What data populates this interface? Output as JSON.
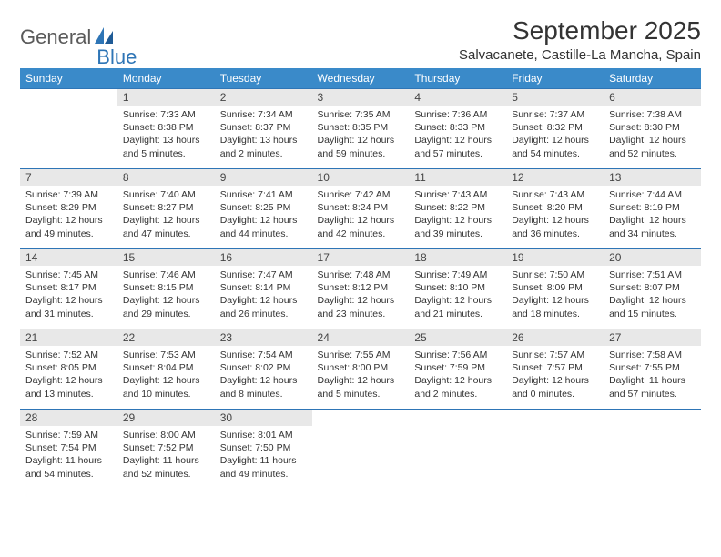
{
  "logo": {
    "part1": "General",
    "part2": "Blue"
  },
  "header": {
    "month_title": "September 2025",
    "location": "Salvacanete, Castille-La Mancha, Spain"
  },
  "colors": {
    "header_bg": "#3a8ac9",
    "border": "#2e75b6",
    "daynum_bg": "#e8e8e8",
    "text": "#333333",
    "logo_gray": "#5a5a5a",
    "logo_blue": "#2e75b6"
  },
  "weekdays": [
    "Sunday",
    "Monday",
    "Tuesday",
    "Wednesday",
    "Thursday",
    "Friday",
    "Saturday"
  ],
  "weeks": [
    [
      {
        "n": "",
        "sr": "",
        "ss": "",
        "dl": "",
        "empty": true
      },
      {
        "n": "1",
        "sr": "Sunrise: 7:33 AM",
        "ss": "Sunset: 8:38 PM",
        "dl": "Daylight: 13 hours and 5 minutes."
      },
      {
        "n": "2",
        "sr": "Sunrise: 7:34 AM",
        "ss": "Sunset: 8:37 PM",
        "dl": "Daylight: 13 hours and 2 minutes."
      },
      {
        "n": "3",
        "sr": "Sunrise: 7:35 AM",
        "ss": "Sunset: 8:35 PM",
        "dl": "Daylight: 12 hours and 59 minutes."
      },
      {
        "n": "4",
        "sr": "Sunrise: 7:36 AM",
        "ss": "Sunset: 8:33 PM",
        "dl": "Daylight: 12 hours and 57 minutes."
      },
      {
        "n": "5",
        "sr": "Sunrise: 7:37 AM",
        "ss": "Sunset: 8:32 PM",
        "dl": "Daylight: 12 hours and 54 minutes."
      },
      {
        "n": "6",
        "sr": "Sunrise: 7:38 AM",
        "ss": "Sunset: 8:30 PM",
        "dl": "Daylight: 12 hours and 52 minutes."
      }
    ],
    [
      {
        "n": "7",
        "sr": "Sunrise: 7:39 AM",
        "ss": "Sunset: 8:29 PM",
        "dl": "Daylight: 12 hours and 49 minutes."
      },
      {
        "n": "8",
        "sr": "Sunrise: 7:40 AM",
        "ss": "Sunset: 8:27 PM",
        "dl": "Daylight: 12 hours and 47 minutes."
      },
      {
        "n": "9",
        "sr": "Sunrise: 7:41 AM",
        "ss": "Sunset: 8:25 PM",
        "dl": "Daylight: 12 hours and 44 minutes."
      },
      {
        "n": "10",
        "sr": "Sunrise: 7:42 AM",
        "ss": "Sunset: 8:24 PM",
        "dl": "Daylight: 12 hours and 42 minutes."
      },
      {
        "n": "11",
        "sr": "Sunrise: 7:43 AM",
        "ss": "Sunset: 8:22 PM",
        "dl": "Daylight: 12 hours and 39 minutes."
      },
      {
        "n": "12",
        "sr": "Sunrise: 7:43 AM",
        "ss": "Sunset: 8:20 PM",
        "dl": "Daylight: 12 hours and 36 minutes."
      },
      {
        "n": "13",
        "sr": "Sunrise: 7:44 AM",
        "ss": "Sunset: 8:19 PM",
        "dl": "Daylight: 12 hours and 34 minutes."
      }
    ],
    [
      {
        "n": "14",
        "sr": "Sunrise: 7:45 AM",
        "ss": "Sunset: 8:17 PM",
        "dl": "Daylight: 12 hours and 31 minutes."
      },
      {
        "n": "15",
        "sr": "Sunrise: 7:46 AM",
        "ss": "Sunset: 8:15 PM",
        "dl": "Daylight: 12 hours and 29 minutes."
      },
      {
        "n": "16",
        "sr": "Sunrise: 7:47 AM",
        "ss": "Sunset: 8:14 PM",
        "dl": "Daylight: 12 hours and 26 minutes."
      },
      {
        "n": "17",
        "sr": "Sunrise: 7:48 AM",
        "ss": "Sunset: 8:12 PM",
        "dl": "Daylight: 12 hours and 23 minutes."
      },
      {
        "n": "18",
        "sr": "Sunrise: 7:49 AM",
        "ss": "Sunset: 8:10 PM",
        "dl": "Daylight: 12 hours and 21 minutes."
      },
      {
        "n": "19",
        "sr": "Sunrise: 7:50 AM",
        "ss": "Sunset: 8:09 PM",
        "dl": "Daylight: 12 hours and 18 minutes."
      },
      {
        "n": "20",
        "sr": "Sunrise: 7:51 AM",
        "ss": "Sunset: 8:07 PM",
        "dl": "Daylight: 12 hours and 15 minutes."
      }
    ],
    [
      {
        "n": "21",
        "sr": "Sunrise: 7:52 AM",
        "ss": "Sunset: 8:05 PM",
        "dl": "Daylight: 12 hours and 13 minutes."
      },
      {
        "n": "22",
        "sr": "Sunrise: 7:53 AM",
        "ss": "Sunset: 8:04 PM",
        "dl": "Daylight: 12 hours and 10 minutes."
      },
      {
        "n": "23",
        "sr": "Sunrise: 7:54 AM",
        "ss": "Sunset: 8:02 PM",
        "dl": "Daylight: 12 hours and 8 minutes."
      },
      {
        "n": "24",
        "sr": "Sunrise: 7:55 AM",
        "ss": "Sunset: 8:00 PM",
        "dl": "Daylight: 12 hours and 5 minutes."
      },
      {
        "n": "25",
        "sr": "Sunrise: 7:56 AM",
        "ss": "Sunset: 7:59 PM",
        "dl": "Daylight: 12 hours and 2 minutes."
      },
      {
        "n": "26",
        "sr": "Sunrise: 7:57 AM",
        "ss": "Sunset: 7:57 PM",
        "dl": "Daylight: 12 hours and 0 minutes."
      },
      {
        "n": "27",
        "sr": "Sunrise: 7:58 AM",
        "ss": "Sunset: 7:55 PM",
        "dl": "Daylight: 11 hours and 57 minutes."
      }
    ],
    [
      {
        "n": "28",
        "sr": "Sunrise: 7:59 AM",
        "ss": "Sunset: 7:54 PM",
        "dl": "Daylight: 11 hours and 54 minutes."
      },
      {
        "n": "29",
        "sr": "Sunrise: 8:00 AM",
        "ss": "Sunset: 7:52 PM",
        "dl": "Daylight: 11 hours and 52 minutes."
      },
      {
        "n": "30",
        "sr": "Sunrise: 8:01 AM",
        "ss": "Sunset: 7:50 PM",
        "dl": "Daylight: 11 hours and 49 minutes."
      },
      {
        "n": "",
        "sr": "",
        "ss": "",
        "dl": "",
        "empty": true
      },
      {
        "n": "",
        "sr": "",
        "ss": "",
        "dl": "",
        "empty": true
      },
      {
        "n": "",
        "sr": "",
        "ss": "",
        "dl": "",
        "empty": true
      },
      {
        "n": "",
        "sr": "",
        "ss": "",
        "dl": "",
        "empty": true
      }
    ]
  ]
}
